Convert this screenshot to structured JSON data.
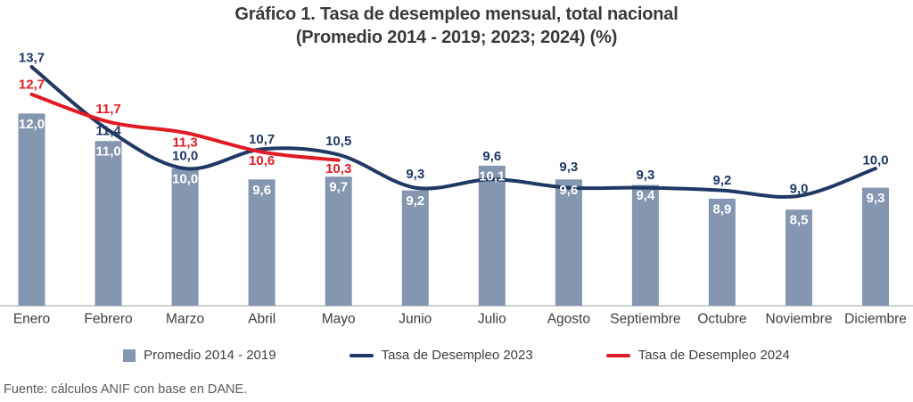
{
  "title": {
    "line1": "Gráfico 1. Tasa de desempleo mensual, total nacional",
    "line2": "(Promedio 2014 - 2019; 2023; 2024) (%)"
  },
  "source_note": "Fuente: cálculos ANIF con base en DANE.",
  "chart_data": {
    "type": "bar+line",
    "title": "Gráfico 1. Tasa de desempleo mensual, total nacional (Promedio 2014 - 2019; 2023; 2024) (%)",
    "categories": [
      "Enero",
      "Febrero",
      "Marzo",
      "Abril",
      "Mayo",
      "Junio",
      "Julio",
      "Agosto",
      "Septiembre",
      "Octubre",
      "Noviembre",
      "Diciembre"
    ],
    "series": [
      {
        "name": "Promedio 2014 - 2019",
        "type": "bar",
        "color": "#8496B0",
        "values": [
          12.0,
          11.0,
          10.0,
          9.6,
          9.7,
          9.2,
          10.1,
          9.6,
          9.4,
          8.9,
          8.5,
          9.3
        ]
      },
      {
        "name": "Tasa de Desempleo 2023",
        "type": "line",
        "color": "#1F3864",
        "values": [
          13.7,
          11.4,
          10.0,
          10.7,
          10.5,
          9.3,
          9.6,
          9.3,
          9.3,
          9.2,
          9.0,
          10.0
        ],
        "label_dy": [
          -11,
          0,
          -15,
          -12,
          -16,
          -16,
          -27,
          -24,
          -15,
          -12,
          -9,
          -10
        ]
      },
      {
        "name": "Tasa de Desempleo 2024",
        "type": "line",
        "color": "#E21A23",
        "values": [
          12.7,
          11.7,
          11.3,
          10.6,
          10.3
        ],
        "label_dy": [
          -12,
          -15,
          10,
          9,
          9
        ]
      }
    ],
    "ylim": [
      5,
      14.35
    ],
    "grid": false,
    "legend_position": "bottom",
    "decimal_separator": ",",
    "axis_color": "#CFCFCF",
    "bar_label_color": "#FFFFFF",
    "month_label_color": "#3E3E3E"
  },
  "legend": {
    "items": [
      {
        "label": "Promedio 2014 - 2019"
      },
      {
        "label": "Tasa de Desempleo 2023"
      },
      {
        "label": "Tasa de Desempleo 2024"
      }
    ]
  }
}
